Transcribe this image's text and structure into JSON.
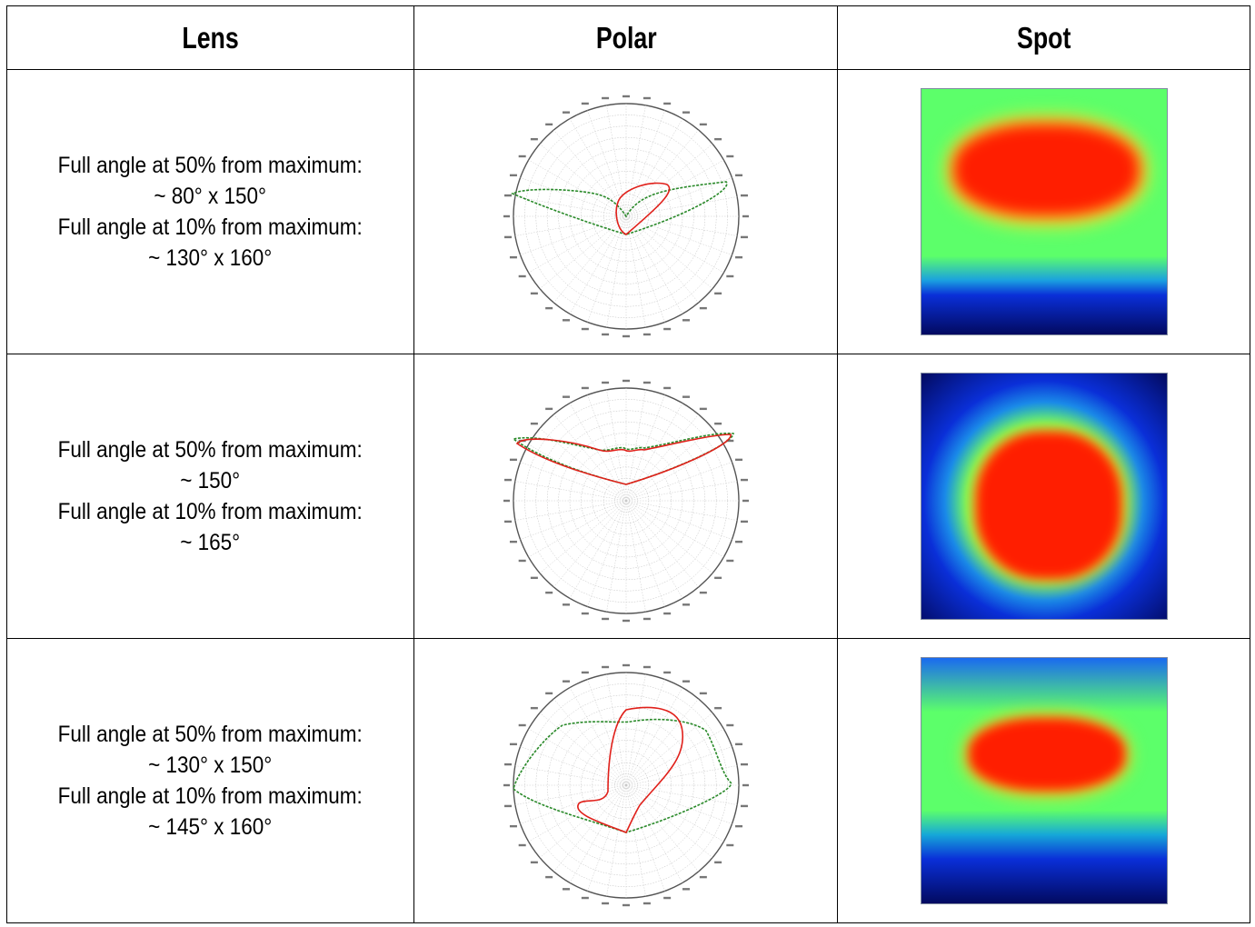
{
  "headers": {
    "lens": "Lens",
    "polar": "Polar",
    "spot": "Spot"
  },
  "rows": [
    {
      "line1": "Full angle at 50% from maximum:",
      "line2": "~ 80° x 150°",
      "line3": "Full angle at 10% from maximum:",
      "line4": "~ 130° x 160°"
    },
    {
      "line1": "Full angle at 50% from maximum:",
      "line2": "~ 150°",
      "line3": "Full angle at 10% from maximum:",
      "line4": "~ 165°"
    },
    {
      "line1": "Full angle at 50% from maximum:",
      "line2": "~ 130° x 150°",
      "line3": "Full angle at 10% from maximum:",
      "line4": "~ 145° x 160°"
    }
  ],
  "colors": {
    "curve_red": "#e0201a",
    "curve_green": "#2a8a2a",
    "heat_red": "#ff1e00",
    "heat_green": "#5cff6a",
    "heat_blue": "#0a2fd8",
    "heat_dark": "#020a60"
  }
}
